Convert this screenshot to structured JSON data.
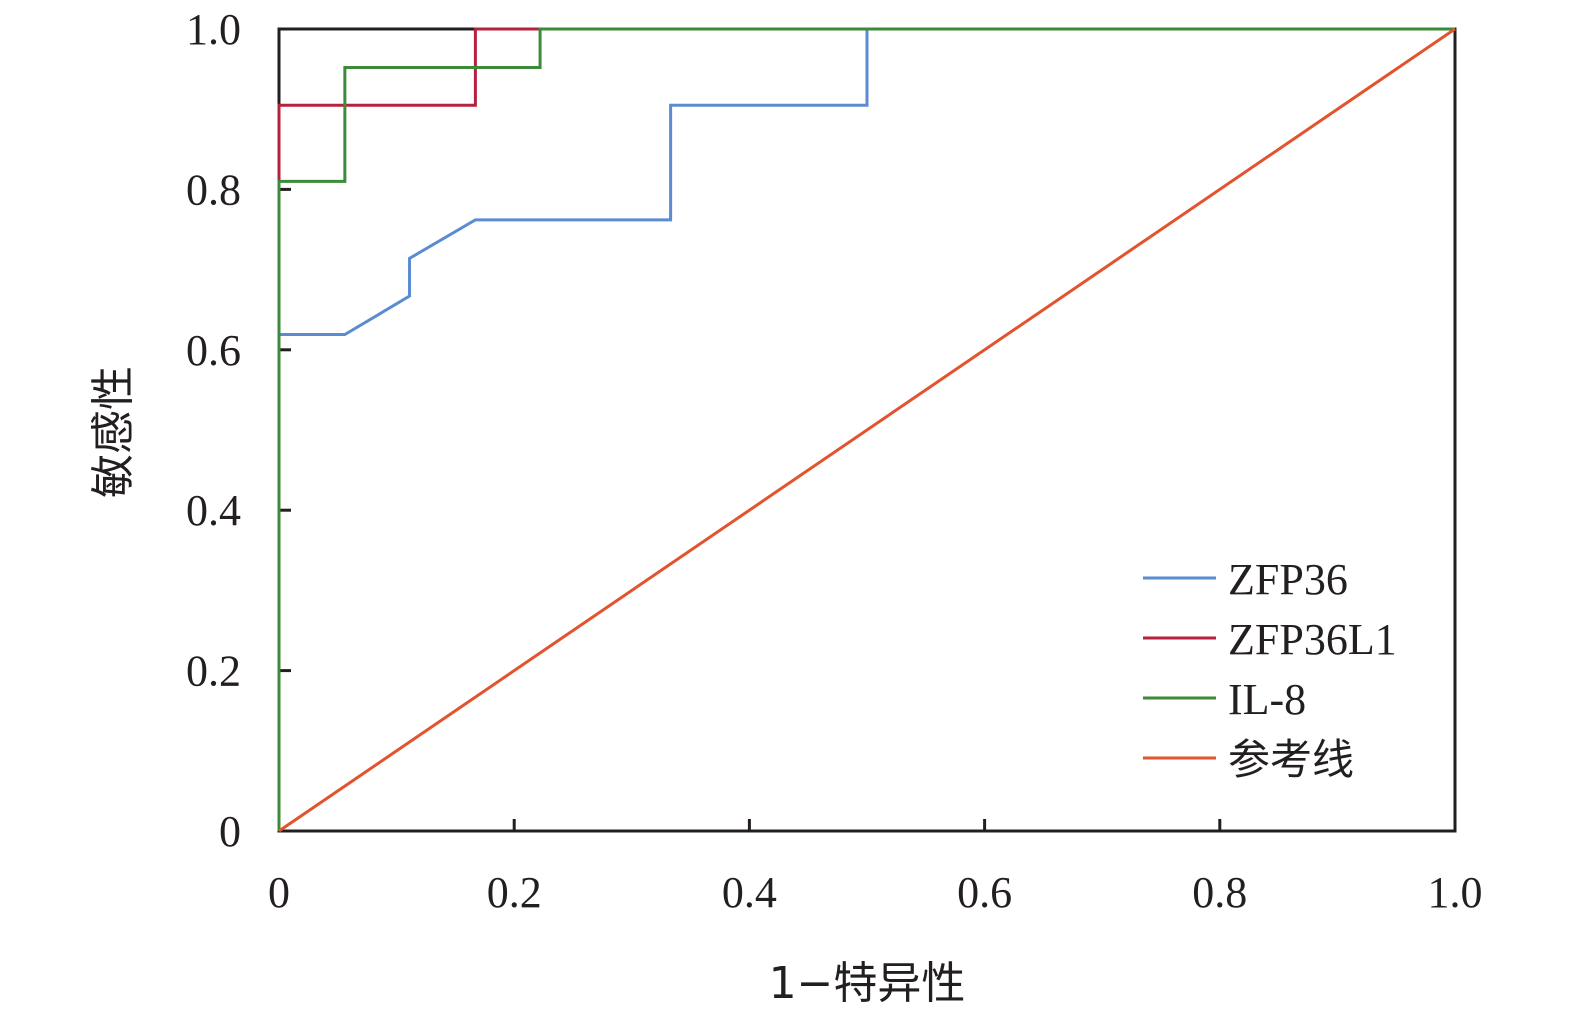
{
  "chart_data": {
    "type": "line",
    "title": "",
    "xlabel": "1−特异性",
    "ylabel": "敏感性",
    "xlim": [
      0,
      1
    ],
    "ylim": [
      0,
      1
    ],
    "x_ticks": [
      "0",
      "0.2",
      "0.4",
      "0.6",
      "0.8",
      "1.0"
    ],
    "y_ticks": [
      "0",
      "0.2",
      "0.4",
      "0.6",
      "0.8",
      "1.0"
    ],
    "grid": false,
    "legend_position": "bottom-right",
    "series": [
      {
        "name": "ZFP36",
        "color": "#5b8bd0",
        "points": [
          [
            0,
            0
          ],
          [
            0,
            0.619
          ],
          [
            0.056,
            0.619
          ],
          [
            0.111,
            0.667
          ],
          [
            0.111,
            0.714
          ],
          [
            0.167,
            0.762
          ],
          [
            0.333,
            0.762
          ],
          [
            0.333,
            0.905
          ],
          [
            0.5,
            0.905
          ],
          [
            0.5,
            1.0
          ],
          [
            1.0,
            1.0
          ]
        ]
      },
      {
        "name": "ZFP36L1",
        "color": "#b5223f",
        "points": [
          [
            0,
            0
          ],
          [
            0,
            0.81
          ],
          [
            0,
            0.905
          ],
          [
            0.056,
            0.905
          ],
          [
            0.167,
            0.905
          ],
          [
            0.167,
            1.0
          ],
          [
            1.0,
            1.0
          ]
        ]
      },
      {
        "name": "IL-8",
        "color": "#3c8a3a",
        "points": [
          [
            0,
            0
          ],
          [
            0,
            0.81
          ],
          [
            0.056,
            0.81
          ],
          [
            0.056,
            0.952
          ],
          [
            0.222,
            0.952
          ],
          [
            0.222,
            1.0
          ],
          [
            1.0,
            1.0
          ]
        ]
      },
      {
        "name": "参考线",
        "color": "#e1542d",
        "points": [
          [
            0,
            0
          ],
          [
            1,
            1
          ]
        ]
      }
    ]
  }
}
